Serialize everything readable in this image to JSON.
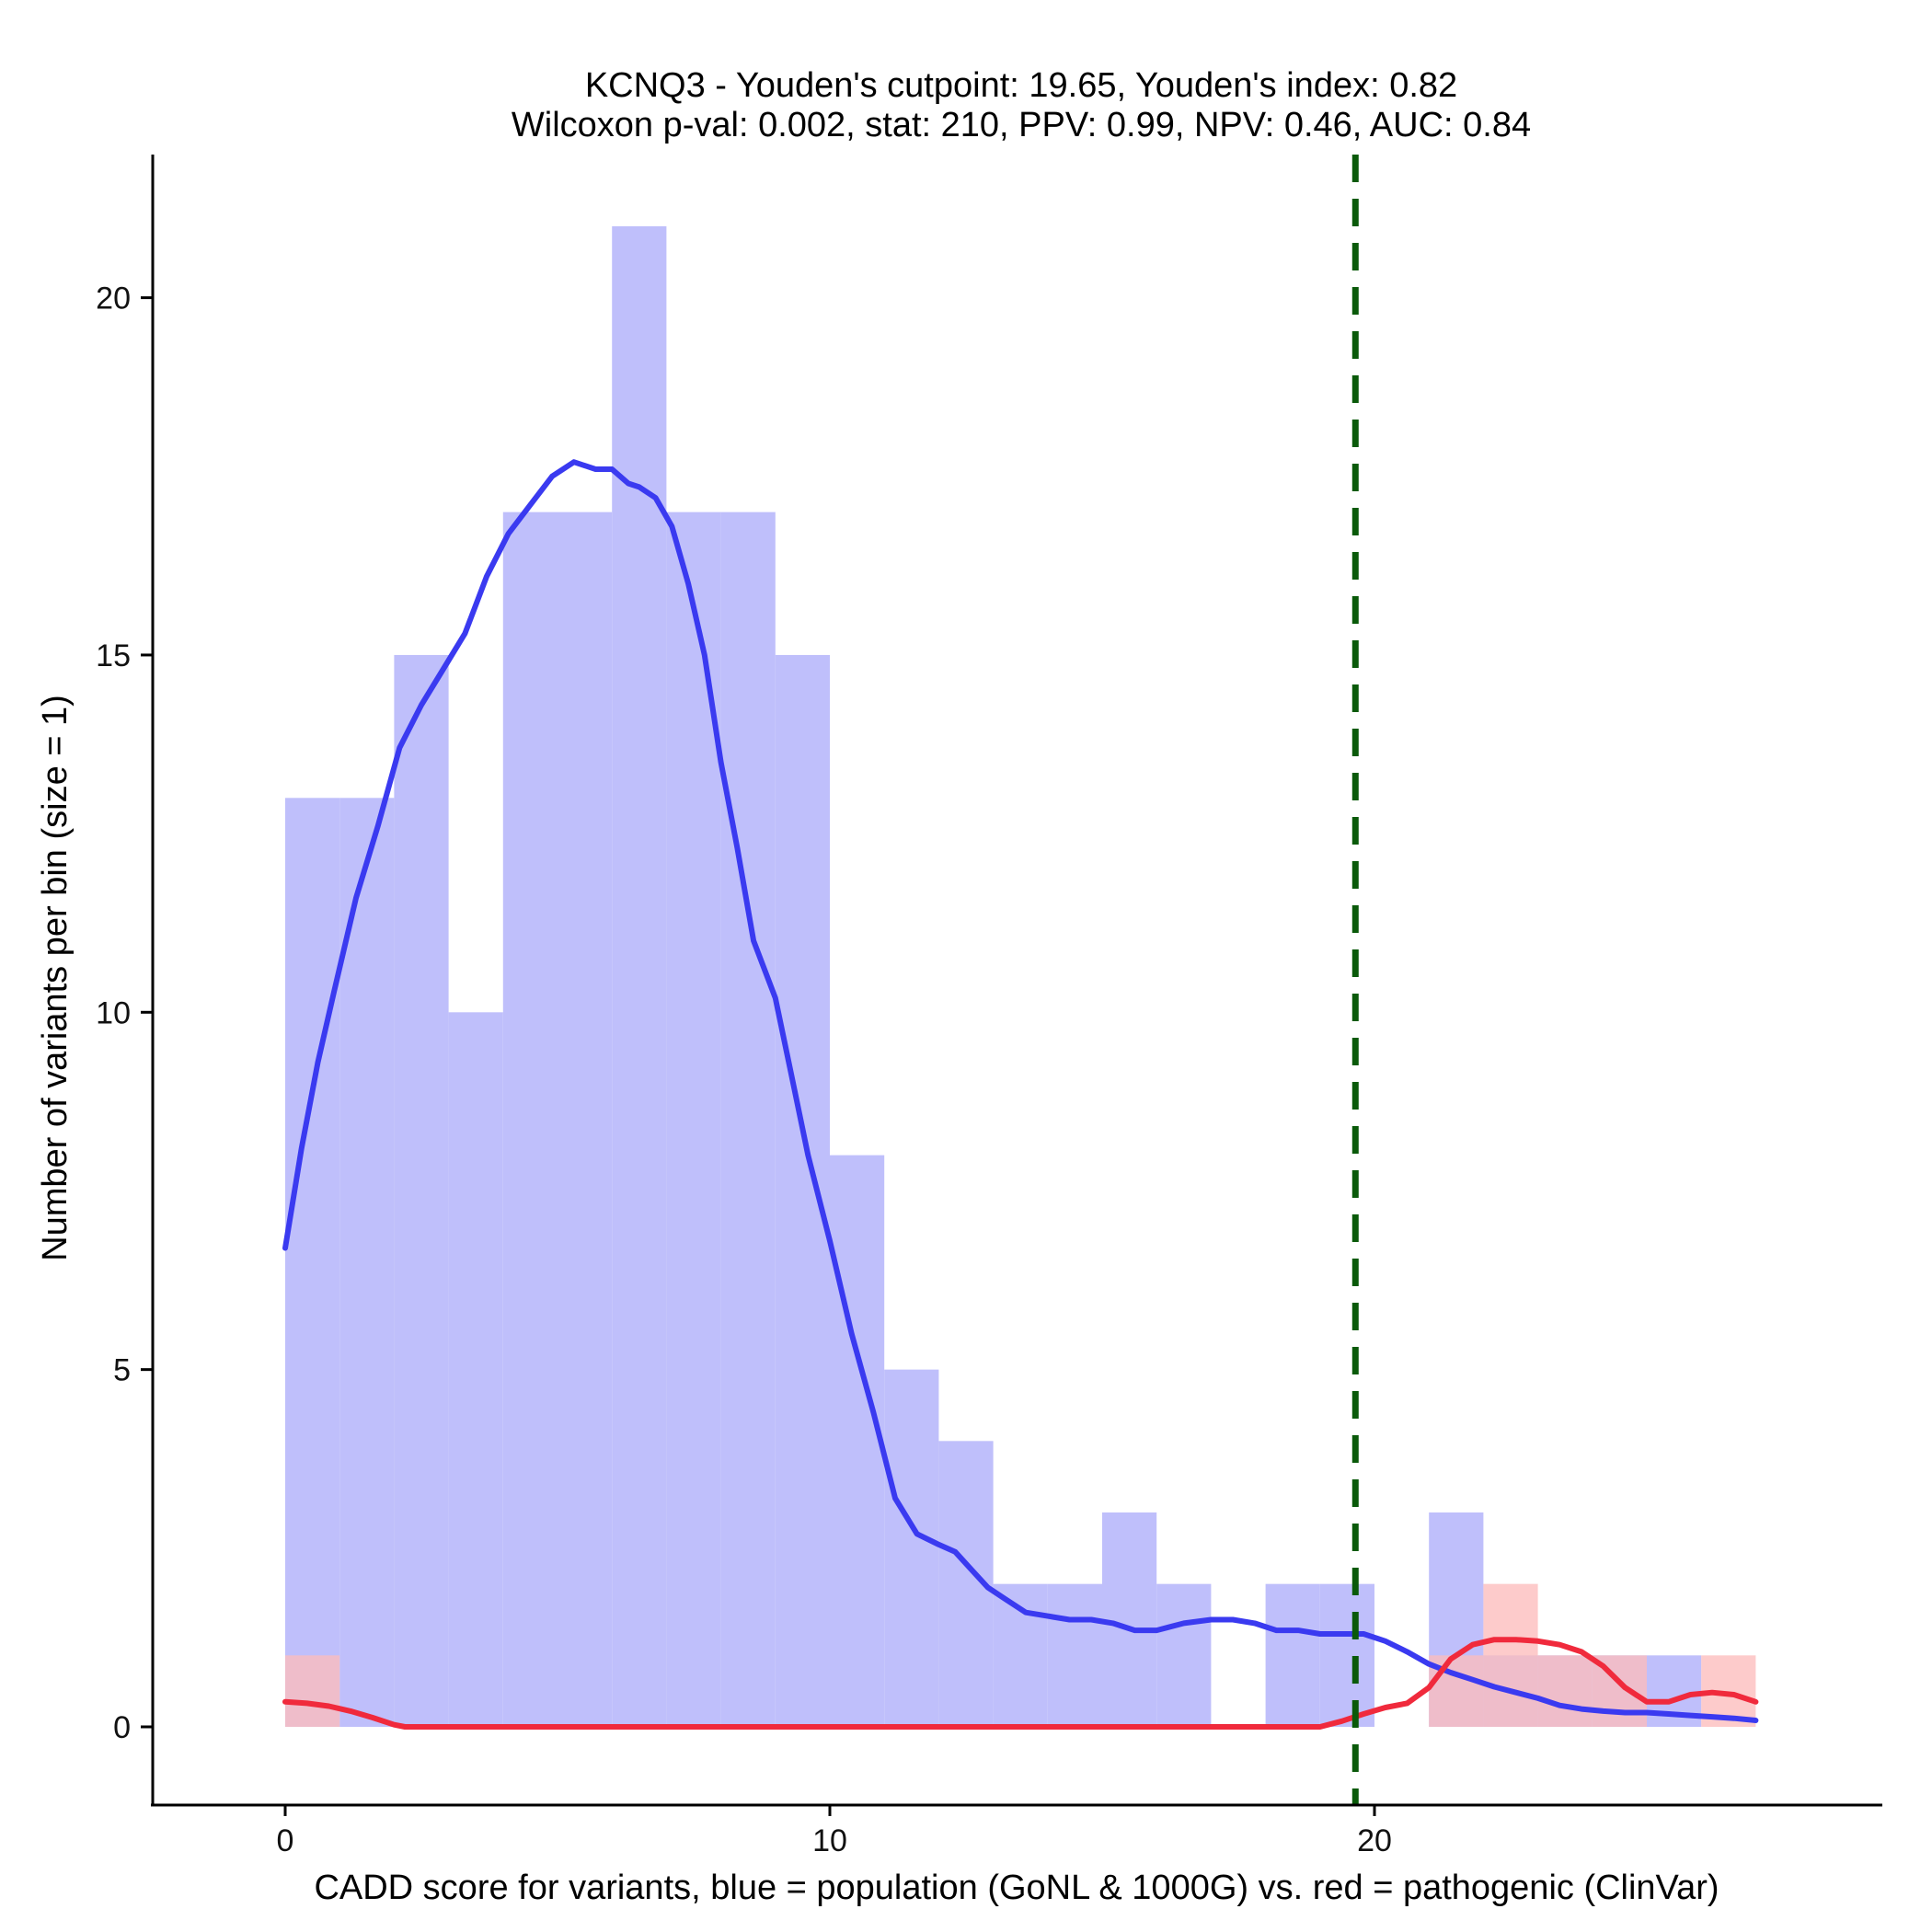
{
  "chart_data": {
    "type": "bar",
    "title": "KCNQ3 - Youden's cutpoint: 19.65, Youden's index: 0.82",
    "subtitle": "Wilcoxon p-val: 0.002, stat: 210, PPV: 0.99, NPV: 0.46, AUC: 0.84",
    "xlabel": "CADD score for variants, blue = population (GoNL & 1000G) vs. red = pathogenic (ClinVar)",
    "ylabel": "Number of variants per bin (size = 1)",
    "xlim": [
      -2.5,
      29
    ],
    "ylim": [
      -1.05,
      22.1
    ],
    "x_ticks": [
      0,
      10,
      20
    ],
    "y_ticks": [
      0,
      5,
      10,
      15,
      20
    ],
    "bin_width": 1,
    "cutpoint": 19.65,
    "series": [
      {
        "name": "population (GoNL & 1000G)",
        "color": "#bfbffb",
        "bin_starts": [
          0,
          1,
          2,
          3,
          4,
          5,
          6,
          7,
          8,
          9,
          10,
          11,
          12,
          13,
          14,
          15,
          16,
          17,
          18,
          19,
          20,
          21,
          22,
          23,
          24,
          25,
          26
        ],
        "values": [
          13,
          13,
          15,
          10,
          17,
          17,
          21,
          17,
          17,
          15,
          8,
          5,
          4,
          2,
          2,
          3,
          2,
          0,
          2,
          2,
          0,
          3,
          1,
          1,
          1,
          1,
          0
        ]
      },
      {
        "name": "pathogenic (ClinVar)",
        "color": "#fdbcbc",
        "bin_starts": [
          0,
          1,
          2,
          3,
          4,
          5,
          6,
          7,
          8,
          9,
          10,
          11,
          12,
          13,
          14,
          15,
          16,
          17,
          18,
          19,
          20,
          21,
          22,
          23,
          24,
          25,
          26
        ],
        "values": [
          1,
          0,
          0,
          0,
          0,
          0,
          0,
          0,
          0,
          0,
          0,
          0,
          0,
          0,
          0,
          0,
          0,
          0,
          0,
          0,
          0,
          1,
          2,
          1,
          1,
          0,
          1
        ]
      }
    ],
    "density_curves": [
      {
        "name": "population density",
        "color": "#3a3af0",
        "x": [
          0,
          0.3,
          0.6,
          0.9,
          1.3,
          1.7,
          2.1,
          2.5,
          2.9,
          3.3,
          3.7,
          4.1,
          4.5,
          4.9,
          5.3,
          5.7,
          6.0,
          6.3,
          6.5,
          6.8,
          7.1,
          7.4,
          7.7,
          8.0,
          8.3,
          8.6,
          9.0,
          9.3,
          9.6,
          10.0,
          10.4,
          10.8,
          11.2,
          11.6,
          12.0,
          12.3,
          12.6,
          12.9,
          13.2,
          13.6,
          14.0,
          14.4,
          14.8,
          15.2,
          15.6,
          16.0,
          16.5,
          17.0,
          17.4,
          17.8,
          18.2,
          18.6,
          19.0,
          19.4,
          19.8,
          20.2,
          20.6,
          21.0,
          21.4,
          21.8,
          22.2,
          22.6,
          23.0,
          23.4,
          23.8,
          24.2,
          24.6,
          25.0,
          25.4,
          25.8,
          26.2,
          26.6,
          27.0
        ],
        "y": [
          6.7,
          8.1,
          9.3,
          10.3,
          11.6,
          12.6,
          13.7,
          14.3,
          14.8,
          15.3,
          16.1,
          16.7,
          17.1,
          17.5,
          17.7,
          17.6,
          17.6,
          17.4,
          17.35,
          17.2,
          16.8,
          16.0,
          15.0,
          13.5,
          12.3,
          11.0,
          10.2,
          9.1,
          8.0,
          6.8,
          5.5,
          4.4,
          3.2,
          2.7,
          2.55,
          2.45,
          2.2,
          1.95,
          1.8,
          1.6,
          1.55,
          1.5,
          1.5,
          1.45,
          1.35,
          1.35,
          1.45,
          1.5,
          1.5,
          1.45,
          1.35,
          1.35,
          1.3,
          1.3,
          1.3,
          1.2,
          1.05,
          0.88,
          0.76,
          0.66,
          0.56,
          0.48,
          0.4,
          0.3,
          0.25,
          0.22,
          0.2,
          0.2,
          0.18,
          0.16,
          0.14,
          0.12,
          0.09
        ]
      },
      {
        "name": "pathogenic density",
        "color": "#f02a3c",
        "x": [
          0,
          0.4,
          0.8,
          1.2,
          1.6,
          2.0,
          2.2,
          3,
          5,
          8,
          11,
          14,
          17,
          18.5,
          19.0,
          19.4,
          19.8,
          20.2,
          20.6,
          21.0,
          21.4,
          21.8,
          22.2,
          22.6,
          23.0,
          23.4,
          23.8,
          24.2,
          24.6,
          25.0,
          25.4,
          25.8,
          26.2,
          26.6,
          27.0
        ],
        "y": [
          0.35,
          0.33,
          0.29,
          0.22,
          0.13,
          0.03,
          0,
          0,
          0,
          0,
          0,
          0,
          0,
          0,
          0.0,
          0.08,
          0.18,
          0.27,
          0.33,
          0.55,
          0.95,
          1.15,
          1.22,
          1.22,
          1.2,
          1.15,
          1.05,
          0.85,
          0.55,
          0.35,
          0.35,
          0.45,
          0.48,
          0.45,
          0.35
        ]
      }
    ]
  }
}
